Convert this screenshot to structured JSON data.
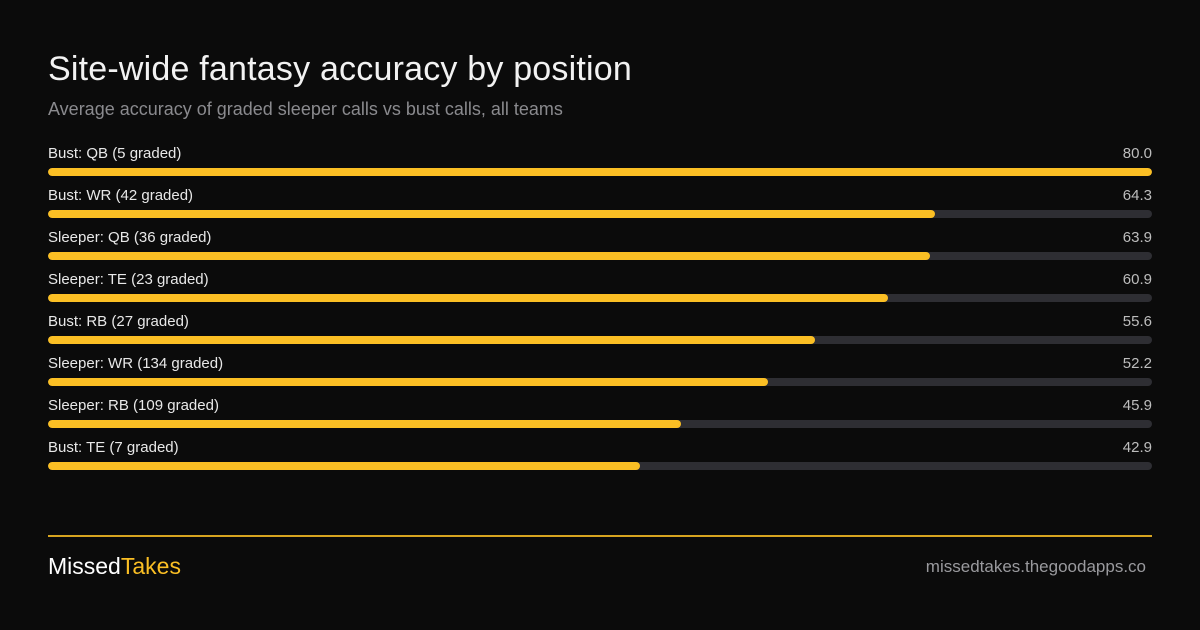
{
  "colors": {
    "background": "#0b0b0b",
    "accent": "#fbbf24",
    "track": "#2e2e33",
    "title": "#f2f2f2",
    "subtitle": "#8a8a8e"
  },
  "chart_data": {
    "type": "bar",
    "orientation": "horizontal",
    "title": "Site-wide fantasy accuracy by position",
    "subtitle": "Average accuracy of graded sleeper calls vs bust calls, all teams",
    "categories": [
      "Bust: QB (5 graded)",
      "Bust: WR (42 graded)",
      "Sleeper: QB (36 graded)",
      "Sleeper: TE (23 graded)",
      "Bust: RB (27 graded)",
      "Sleeper: WR (134 graded)",
      "Sleeper: RB (109 graded)",
      "Bust: TE (7 graded)"
    ],
    "values": [
      80.0,
      64.3,
      63.9,
      60.9,
      55.6,
      52.2,
      45.9,
      42.9
    ],
    "value_labels": [
      "80.0",
      "64.3",
      "63.9",
      "60.9",
      "55.6",
      "52.2",
      "45.9",
      "42.9"
    ],
    "xlim": [
      0,
      80.0
    ],
    "grid": false,
    "legend": "none"
  },
  "footer": {
    "brand_first": "Missed",
    "brand_second": "Takes",
    "site": "missedtakes.thegoodapps.co"
  }
}
